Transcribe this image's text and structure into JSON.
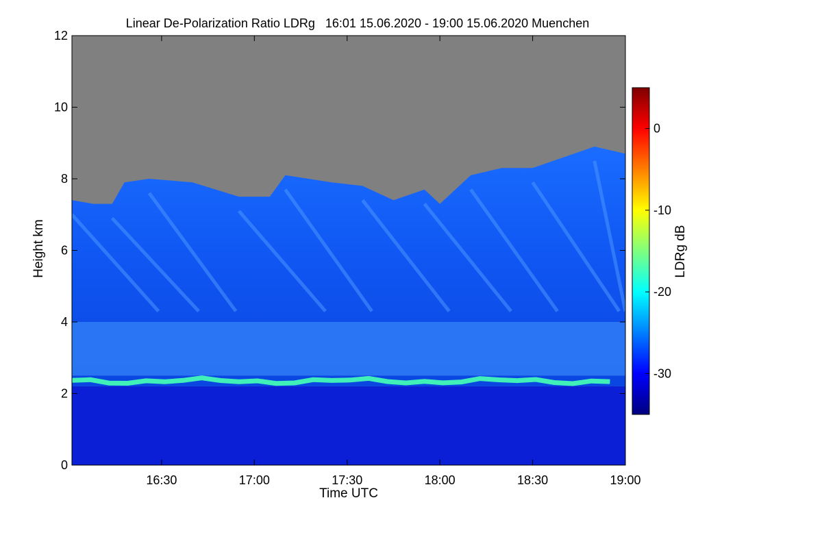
{
  "chart_data": {
    "type": "heatmap",
    "title": "Linear De-Polarization Ratio LDRg   16:01 15.06.2020 - 19:00 15.06.2020 Muenchen",
    "xlabel": "Time UTC",
    "ylabel": "Height km",
    "x_range": [
      "16:01",
      "19:00"
    ],
    "x_ticks": [
      {
        "value": "16:30",
        "label": "16:30"
      },
      {
        "value": "17:00",
        "label": "17:00"
      },
      {
        "value": "17:30",
        "label": "17:30"
      },
      {
        "value": "18:00",
        "label": "18:00"
      },
      {
        "value": "18:30",
        "label": "18:30"
      },
      {
        "value": "19:00",
        "label": "19:00"
      }
    ],
    "y_range": [
      0,
      12
    ],
    "y_ticks": [
      0,
      2,
      4,
      6,
      8,
      10,
      12
    ],
    "colorbar": {
      "label": "LDRg dB",
      "range": [
        -35,
        5
      ],
      "ticks": [
        0,
        -10,
        -20,
        -30
      ],
      "colormap": [
        "#00007f",
        "#0000ff",
        "#007fff",
        "#00ffff",
        "#7fff7f",
        "#ffff00",
        "#ff7f00",
        "#ff0000",
        "#7f0000"
      ]
    },
    "no_data_color": "#808080",
    "layers": {
      "boundary_layer": {
        "height_range_km": [
          0,
          2.2
        ],
        "ldr_db": -32
      },
      "aerosol_top_band": {
        "height_km": 2.35,
        "ldr_db": -22
      },
      "elevated_layer": {
        "height_range_km": [
          2.5,
          4.0
        ],
        "ldr_db": -26
      },
      "cirrus": {
        "height_range_km": [
          4.0,
          9.0
        ],
        "ldr_db": -28
      }
    },
    "signal_top": [
      {
        "time": "16:01",
        "height_km": 7.4
      },
      {
        "time": "16:08",
        "height_km": 7.3
      },
      {
        "time": "16:14",
        "height_km": 7.3
      },
      {
        "time": "16:18",
        "height_km": 7.9
      },
      {
        "time": "16:26",
        "height_km": 8.0
      },
      {
        "time": "16:40",
        "height_km": 7.9
      },
      {
        "time": "16:55",
        "height_km": 7.5
      },
      {
        "time": "17:05",
        "height_km": 7.5
      },
      {
        "time": "17:10",
        "height_km": 8.1
      },
      {
        "time": "17:25",
        "height_km": 7.9
      },
      {
        "time": "17:35",
        "height_km": 7.8
      },
      {
        "time": "17:45",
        "height_km": 7.4
      },
      {
        "time": "17:55",
        "height_km": 7.7
      },
      {
        "time": "18:00",
        "height_km": 7.3
      },
      {
        "time": "18:10",
        "height_km": 8.1
      },
      {
        "time": "18:20",
        "height_km": 8.3
      },
      {
        "time": "18:30",
        "height_km": 8.3
      },
      {
        "time": "18:40",
        "height_km": 8.6
      },
      {
        "time": "18:50",
        "height_km": 8.9
      },
      {
        "time": "19:00",
        "height_km": 8.7
      }
    ]
  }
}
